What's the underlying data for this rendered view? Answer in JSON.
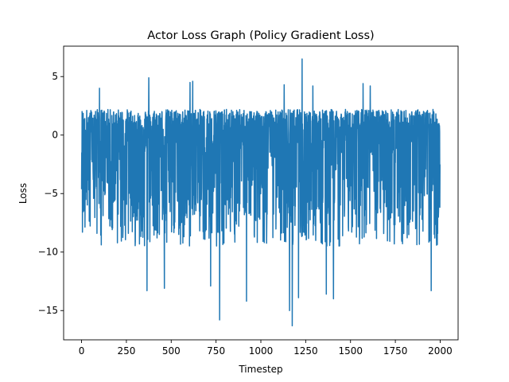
{
  "chart_data": {
    "type": "line",
    "title": "Actor Loss Graph (Policy Gradient Loss)",
    "xlabel": "Timestep",
    "ylabel": "Loss",
    "xlim": [
      -100,
      2100
    ],
    "ylim": [
      -17.5,
      7.6
    ],
    "xticks": [
      0,
      250,
      500,
      750,
      1000,
      1250,
      1500,
      1750,
      2000
    ],
    "yticks": [
      -15,
      -10,
      -5,
      0,
      5
    ],
    "xtick_labels": [
      "0",
      "250",
      "500",
      "750",
      "1000",
      "1250",
      "1500",
      "1750",
      "2000"
    ],
    "ytick_labels": [
      "−15",
      "−10",
      "−5",
      "0",
      "5"
    ],
    "grid": false,
    "series": [
      {
        "color": "#1f77b4",
        "x_start": 0,
        "x_step": 1,
        "point_count": 2000,
        "typical_range": [
          -9.5,
          2.2
        ],
        "extremes": [
          {
            "x": 5,
            "y": -8.3
          },
          {
            "x": 100,
            "y": 4.0
          },
          {
            "x": 365,
            "y": -13.3
          },
          {
            "x": 375,
            "y": 4.9
          },
          {
            "x": 462,
            "y": -13.1
          },
          {
            "x": 605,
            "y": 4.5
          },
          {
            "x": 620,
            "y": 4.6
          },
          {
            "x": 720,
            "y": -12.9
          },
          {
            "x": 770,
            "y": -15.8
          },
          {
            "x": 920,
            "y": -14.2
          },
          {
            "x": 1130,
            "y": 4.3
          },
          {
            "x": 1160,
            "y": -15.0
          },
          {
            "x": 1175,
            "y": -16.3
          },
          {
            "x": 1210,
            "y": -13.9
          },
          {
            "x": 1230,
            "y": 6.5
          },
          {
            "x": 1290,
            "y": 4.2
          },
          {
            "x": 1365,
            "y": -13.6
          },
          {
            "x": 1405,
            "y": -14.0
          },
          {
            "x": 1570,
            "y": 4.4
          },
          {
            "x": 1610,
            "y": 4.2
          },
          {
            "x": 1950,
            "y": -13.3
          }
        ]
      }
    ]
  }
}
